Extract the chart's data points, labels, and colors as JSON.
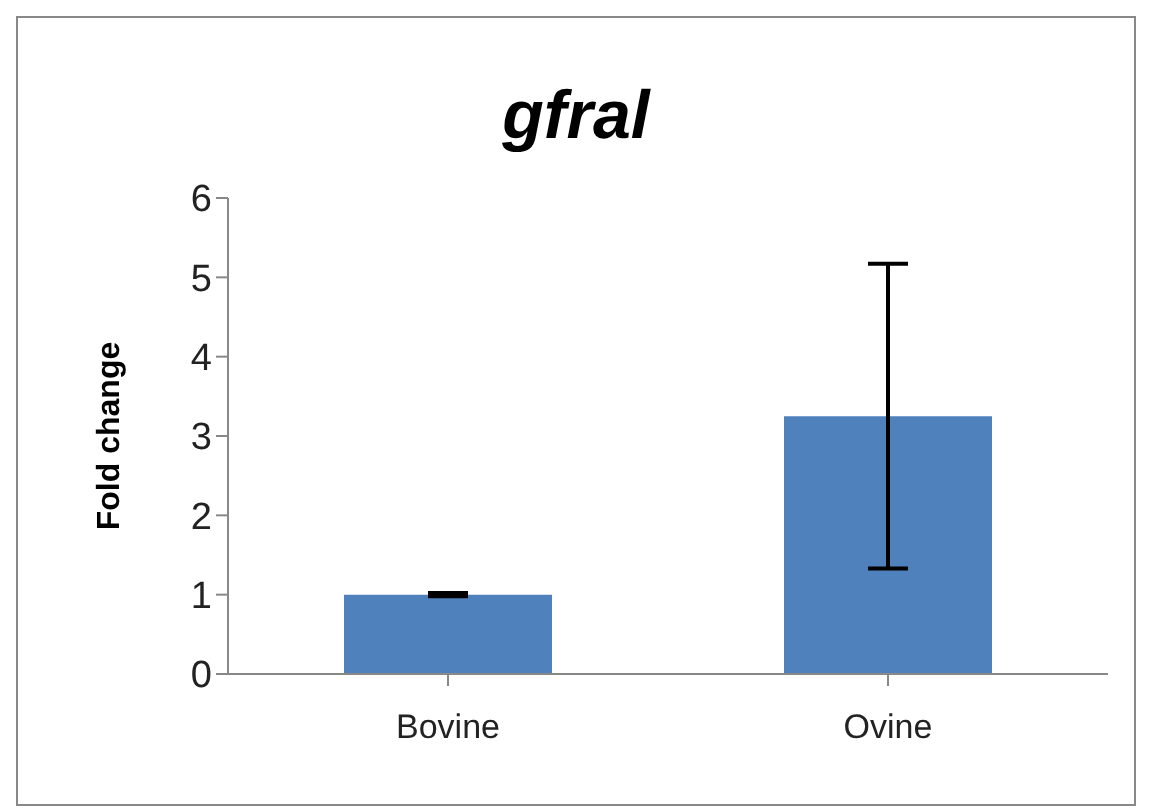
{
  "chart_data": {
    "type": "bar",
    "title": "gfral",
    "ylabel": "Fold change",
    "categories": [
      "Bovine",
      "Ovine"
    ],
    "values": [
      1.0,
      3.25
    ],
    "errors": [
      0.02,
      1.92
    ],
    "color": "#4f81bd",
    "ylim": [
      0,
      6
    ],
    "yticks": [
      0,
      1,
      2,
      3,
      4,
      5,
      6
    ],
    "grid": false,
    "legend": false
  }
}
